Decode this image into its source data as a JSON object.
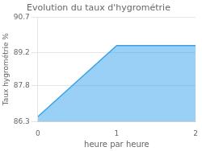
{
  "chart_data": {
    "type": "area",
    "title": "Evolution du taux d'hygrométrie",
    "xlabel": "heure par heure",
    "ylabel": "Taux hygrométrie %",
    "x": [
      0,
      1,
      2
    ],
    "values": [
      86.5,
      89.5,
      89.5
    ],
    "xlim": [
      0,
      2
    ],
    "ylim": [
      86.3,
      90.7
    ],
    "xticks": [
      0,
      1,
      2
    ],
    "yticks": [
      86.3,
      87.8,
      89.2,
      90.7
    ],
    "grid": "y",
    "marker": "none"
  }
}
